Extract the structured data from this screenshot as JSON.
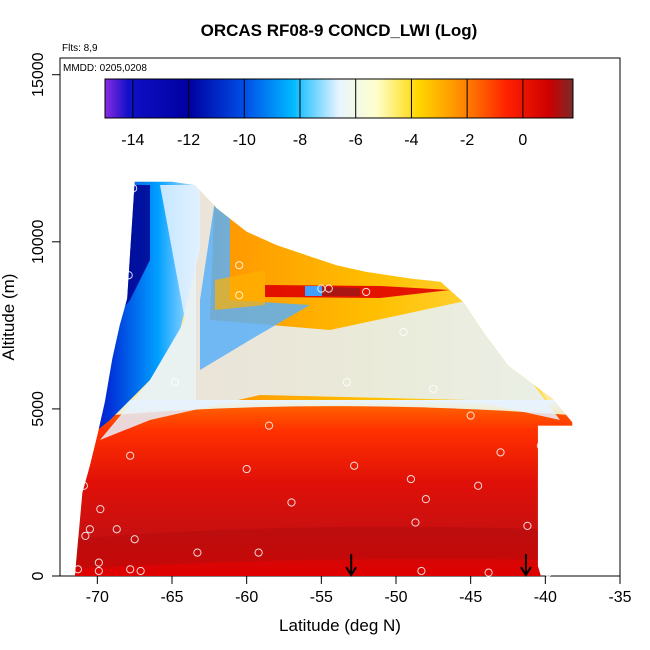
{
  "chart_data": {
    "type": "heatmap",
    "title": "ORCAS RF08-9 CONCD_LWI (Log)",
    "flights_label": "Flts: 8,9",
    "dates_label": "MMDD: 0205,0208",
    "xlabel": "Latitude (deg N)",
    "ylabel": "Altitude (m)",
    "xlim": [
      -72.5,
      -35
    ],
    "ylim": [
      0,
      15500
    ],
    "x_ticks": [
      -70,
      -65,
      -60,
      -55,
      -50,
      -45,
      -40,
      -35
    ],
    "y_ticks": [
      0,
      5000,
      10000,
      15000
    ],
    "colorbar": {
      "range": [
        -15,
        1.8
      ],
      "ticks": [
        -14,
        -12,
        -10,
        -8,
        -6,
        -4,
        -2,
        0
      ],
      "colors": [
        "#8a2be2",
        "#1010c8",
        "#0000a0",
        "#0050e8",
        "#00b8ff",
        "#e8f4ff",
        "#ffffcc",
        "#ffd700",
        "#ff8c00",
        "#ff2000",
        "#cc0000",
        "#7a2a2a"
      ]
    },
    "arrows_latitude": [
      -53,
      -41.3
    ],
    "domain_top_altitude": [
      [
        -71.5,
        0
      ],
      [
        -71.3,
        1000
      ],
      [
        -71.0,
        2500
      ],
      [
        -70.5,
        3300
      ],
      [
        -70.0,
        4200
      ],
      [
        -69.5,
        5200
      ],
      [
        -69.0,
        6500
      ],
      [
        -68.5,
        7500
      ],
      [
        -68.0,
        8300
      ],
      [
        -67.5,
        11800
      ],
      [
        -65.0,
        11800
      ],
      [
        -63.5,
        11700
      ],
      [
        -62.0,
        11000
      ],
      [
        -60.0,
        10300
      ],
      [
        -58.0,
        9900
      ],
      [
        -56.0,
        9600
      ],
      [
        -54.0,
        9300
      ],
      [
        -52.0,
        9100
      ],
      [
        -49.0,
        8900
      ],
      [
        -47.0,
        8800
      ],
      [
        -45.5,
        8200
      ],
      [
        -44.0,
        7200
      ],
      [
        -42.5,
        6300
      ],
      [
        -41.0,
        5800
      ],
      [
        -39.5,
        5300
      ],
      [
        -38.2,
        4600
      ],
      [
        -38.2,
        4500
      ],
      [
        -40.5,
        4500
      ],
      [
        -40.5,
        300
      ],
      [
        -40.3,
        0
      ]
    ],
    "sample_points": [
      [
        -67.6,
        11600
      ],
      [
        -67.9,
        9000
      ],
      [
        -69.9,
        7000
      ],
      [
        -64.8,
        5800
      ],
      [
        -60.5,
        9300
      ],
      [
        -60.5,
        8400
      ],
      [
        -55.0,
        8600
      ],
      [
        -54.5,
        8600
      ],
      [
        -52.0,
        8500
      ],
      [
        -53.3,
        5800
      ],
      [
        -49.5,
        7300
      ],
      [
        -47.5,
        5600
      ],
      [
        -45.0,
        4800
      ],
      [
        -58.5,
        4500
      ],
      [
        -67.8,
        3600
      ],
      [
        -60.0,
        3200
      ],
      [
        -57.0,
        2200
      ],
      [
        -52.8,
        3300
      ],
      [
        -49.0,
        2900
      ],
      [
        -48.0,
        2300
      ],
      [
        -44.5,
        2700
      ],
      [
        -43.0,
        3700
      ],
      [
        -40.3,
        3900
      ],
      [
        -40.0,
        2700
      ],
      [
        -70.9,
        2700
      ],
      [
        -69.8,
        2000
      ],
      [
        -70.5,
        1400
      ],
      [
        -70.8,
        1200
      ],
      [
        -68.7,
        1400
      ],
      [
        -67.5,
        1100
      ],
      [
        -69.9,
        400
      ],
      [
        -71.3,
        200
      ],
      [
        -69.9,
        150
      ],
      [
        -67.8,
        200
      ],
      [
        -67.1,
        150
      ],
      [
        -63.3,
        700
      ],
      [
        -59.2,
        700
      ],
      [
        -48.7,
        1600
      ],
      [
        -41.2,
        1500
      ],
      [
        -48.3,
        150
      ],
      [
        -43.8,
        100
      ],
      [
        -39.8,
        100
      ]
    ]
  }
}
